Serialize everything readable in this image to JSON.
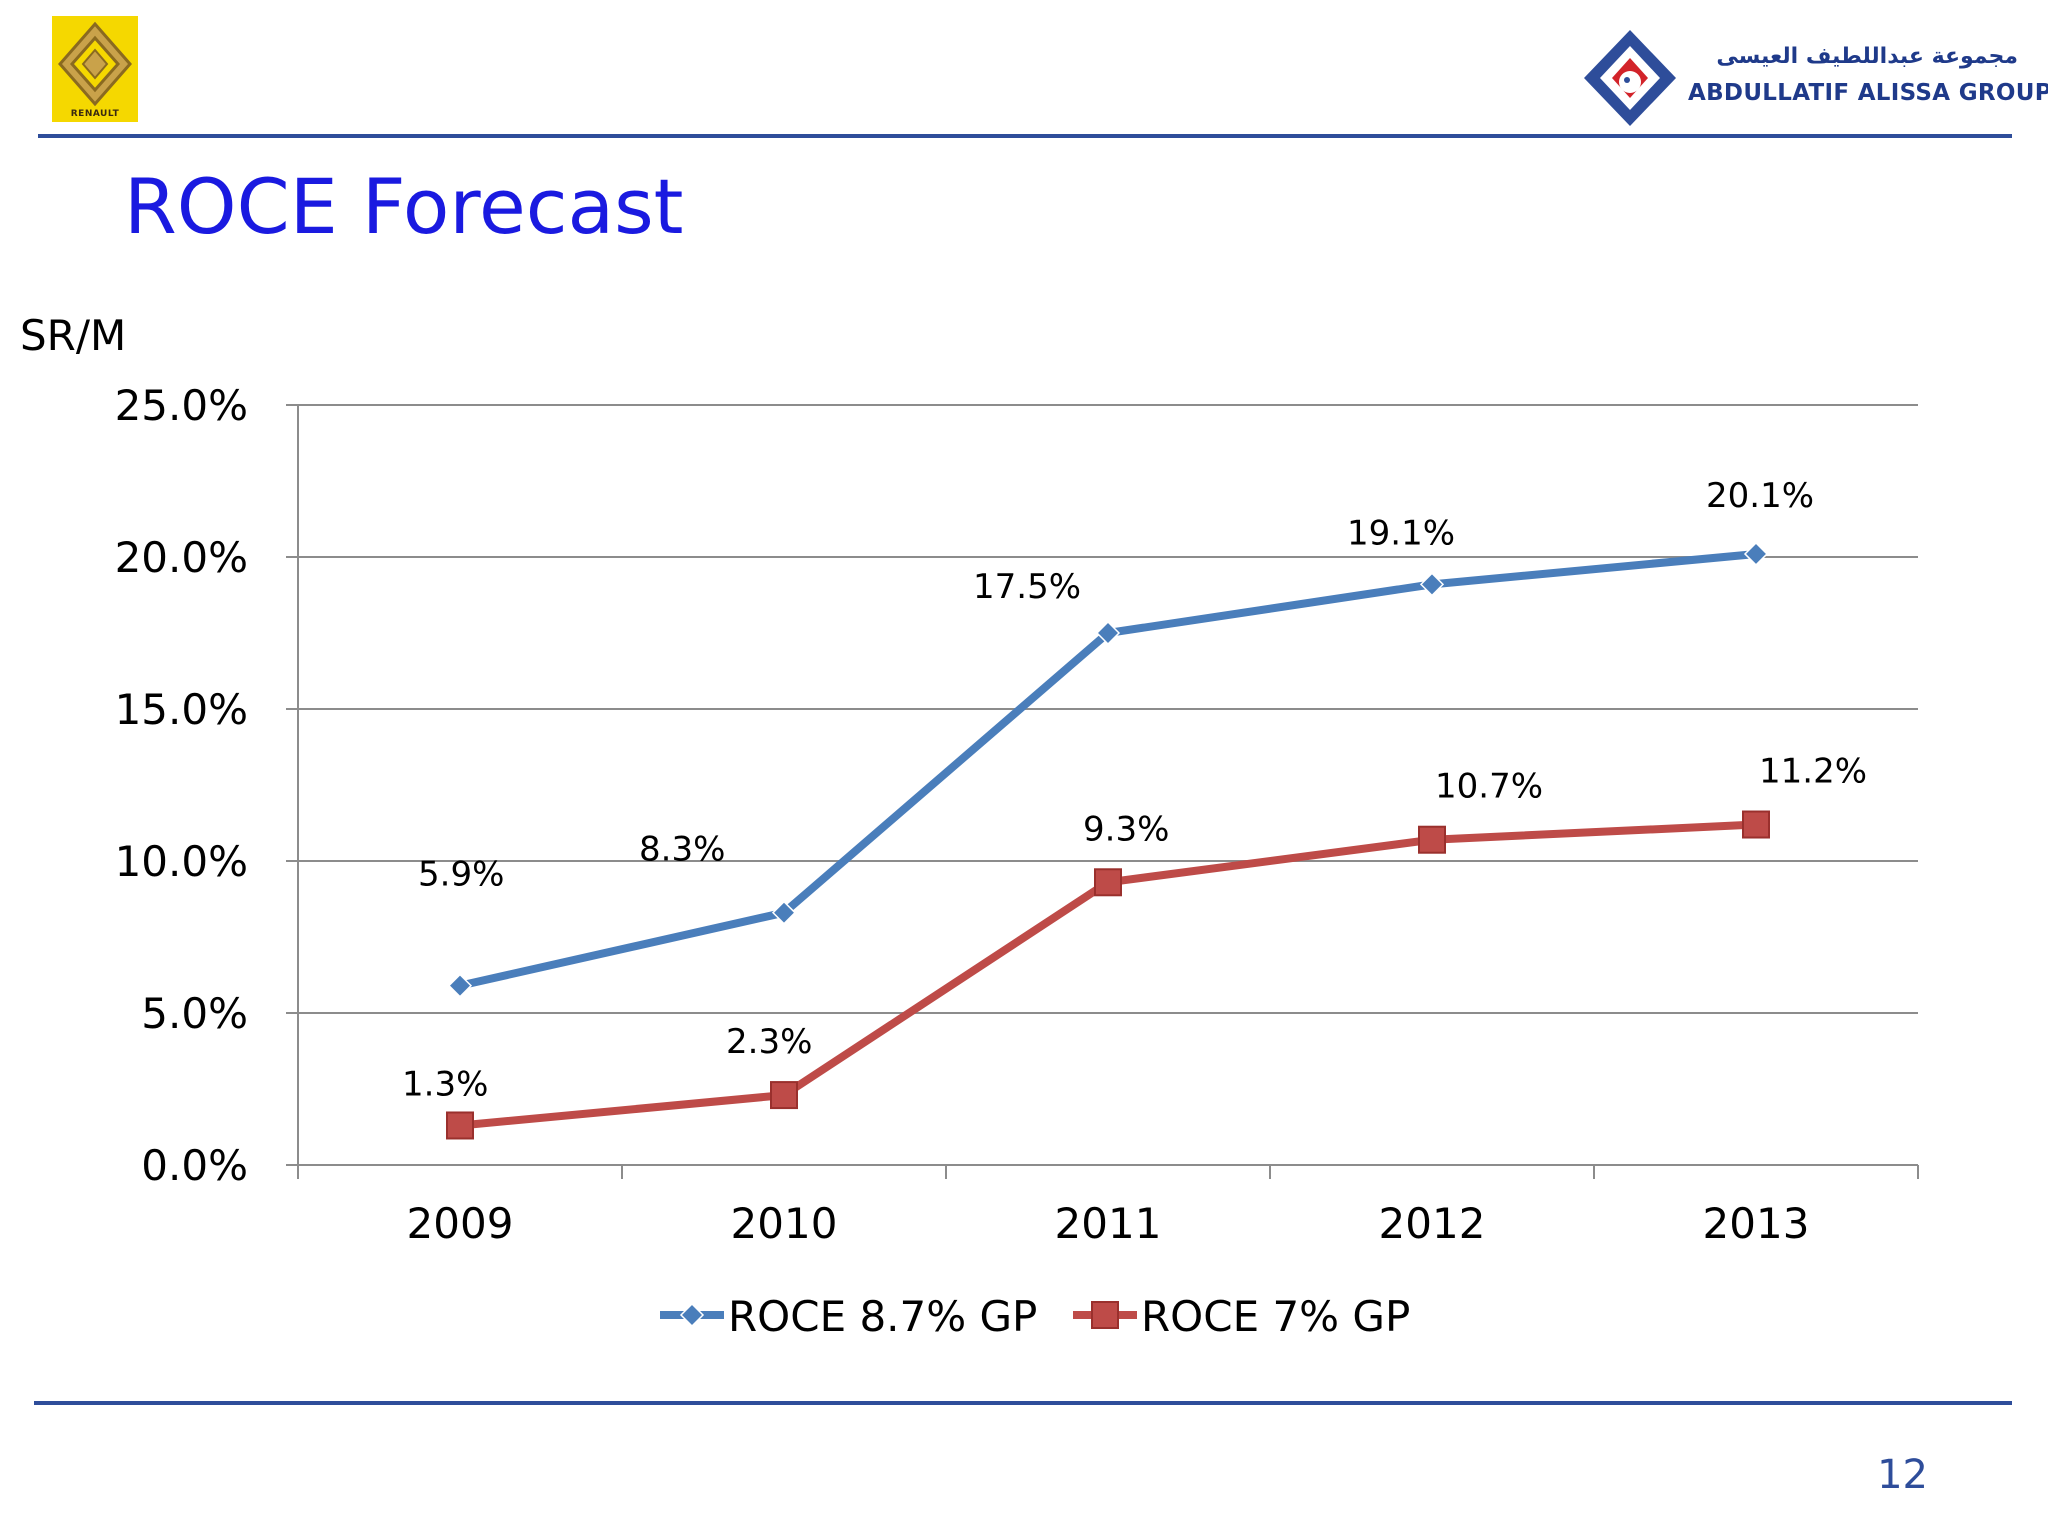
{
  "header": {
    "left_logo": {
      "icon": "renault-diamond-icon",
      "brand": "RENAULT",
      "color": "#f5d800"
    },
    "right_logo": {
      "icon": "abdullatif-alissa-emblem-icon",
      "arabic": "مجموعة عبداللطيف العيسى",
      "latin": "ABDULLATIF ALISSA GROUP"
    }
  },
  "slide": {
    "title": "ROCE Forecast",
    "page_number": "12"
  },
  "colors": {
    "title": "#1a1ae0",
    "rule": "#2e4d9a",
    "series_blue": "#4a7ebb",
    "series_red": "#be4b48",
    "grid": "#8c8c8c"
  },
  "chart_data": {
    "type": "line",
    "unit_label": "SR/M",
    "categories": [
      "2009",
      "2010",
      "2011",
      "2012",
      "2013"
    ],
    "ylim": [
      0,
      25
    ],
    "yticks": [
      0,
      5,
      10,
      15,
      20,
      25
    ],
    "ytick_labels": [
      "0.0%",
      "5.0%",
      "10.0%",
      "15.0%",
      "20.0%",
      "25.0%"
    ],
    "grid": true,
    "legend": "bottom",
    "series": [
      {
        "name": "ROCE 8.7% GP",
        "marker": "diamond",
        "color": "#4a7ebb",
        "values": [
          5.9,
          8.3,
          17.5,
          19.1,
          20.1
        ],
        "labels": [
          "5.9%",
          "8.3%",
          "17.5%",
          "19.1%",
          "20.1%"
        ]
      },
      {
        "name": "ROCE 7% GP",
        "marker": "square",
        "color": "#be4b48",
        "values": [
          1.3,
          2.3,
          9.3,
          10.7,
          11.2
        ],
        "labels": [
          "1.3%",
          "2.3%",
          "9.3%",
          "10.7%",
          "11.2%"
        ]
      }
    ]
  }
}
